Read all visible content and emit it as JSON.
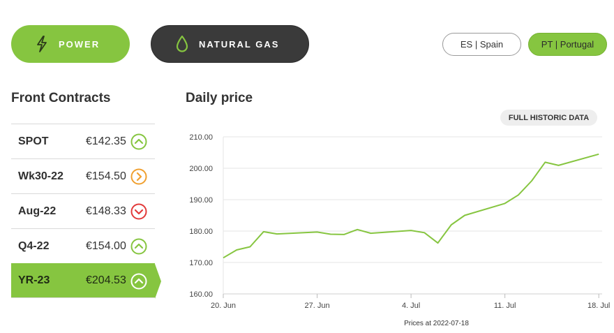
{
  "nav": {
    "power_label": "POWER",
    "gas_label": "NATURAL GAS",
    "power_icon": "lightning-icon",
    "gas_icon": "flame-drop-icon"
  },
  "countries": {
    "es_label": "ES | Spain",
    "pt_label": "PT | Portugal",
    "selected": "PT"
  },
  "front_contracts": {
    "title": "Front Contracts",
    "rows": [
      {
        "name": "SPOT",
        "price": "€142.35",
        "trend": "up",
        "active": false
      },
      {
        "name": "Wk30-22",
        "price": "€154.50",
        "trend": "flat",
        "active": false
      },
      {
        "name": "Aug-22",
        "price": "€148.33",
        "trend": "down",
        "active": false
      },
      {
        "name": "Q4-22",
        "price": "€154.00",
        "trend": "up",
        "active": false
      },
      {
        "name": "YR-23",
        "price": "€204.53",
        "trend": "up",
        "active": true
      }
    ]
  },
  "daily_price": {
    "title": "Daily price",
    "historic_button": "FULL HISTORIC DATA",
    "footnote": "Prices at 2022-07-18"
  },
  "colors": {
    "accent_green": "#86c540",
    "dark": "#3a3a3a",
    "up": "#86c540",
    "flat": "#f0a030",
    "down": "#e23a3a"
  },
  "chart_data": {
    "type": "line",
    "title": "Daily price",
    "xlabel": "",
    "ylabel": "",
    "ylim": [
      160,
      210
    ],
    "yticks": [
      "160.00",
      "170.00",
      "180.00",
      "190.00",
      "200.00",
      "210.00"
    ],
    "xticks": [
      {
        "label": "20. Jun",
        "day": 0
      },
      {
        "label": "27. Jun",
        "day": 7
      },
      {
        "label": "4. Jul",
        "day": 14
      },
      {
        "label": "11. Jul",
        "day": 21
      },
      {
        "label": "18. Jul",
        "day": 28
      }
    ],
    "grid": "horizontal",
    "series": [
      {
        "color": "#86c540",
        "x": [
          "2022-06-20",
          "2022-06-21",
          "2022-06-22",
          "2022-06-23",
          "2022-06-24",
          "2022-06-27",
          "2022-06-28",
          "2022-06-29",
          "2022-06-30",
          "2022-07-01",
          "2022-07-04",
          "2022-07-05",
          "2022-07-06",
          "2022-07-07",
          "2022-07-08",
          "2022-07-11",
          "2022-07-12",
          "2022-07-13",
          "2022-07-14",
          "2022-07-15",
          "2022-07-18"
        ],
        "days": [
          0,
          1,
          2,
          3,
          4,
          7,
          8,
          9,
          10,
          11,
          14,
          15,
          16,
          17,
          18,
          21,
          22,
          23,
          24,
          25,
          28
        ],
        "values": [
          171.5,
          174.0,
          175.0,
          179.8,
          179.1,
          179.7,
          179.0,
          178.9,
          180.5,
          179.3,
          180.2,
          179.5,
          176.2,
          182.0,
          185.0,
          188.8,
          191.5,
          196.0,
          201.9,
          200.9,
          204.5
        ]
      }
    ]
  }
}
